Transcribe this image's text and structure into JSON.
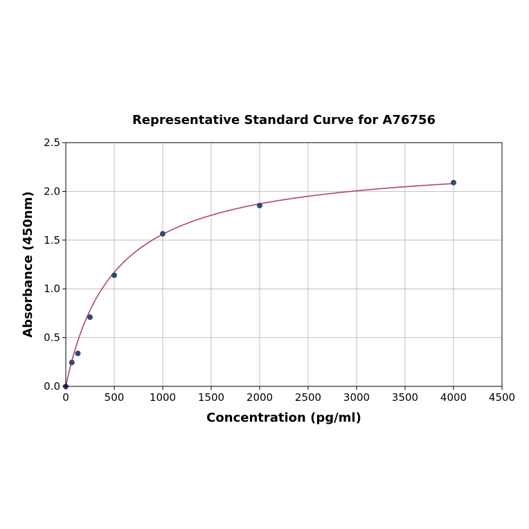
{
  "chart_data": {
    "type": "scatter",
    "title": "Representative Standard Curve for A76756",
    "xlabel": "Concentration (pg/ml)",
    "ylabel": "Absorbance (450nm)",
    "xlim": [
      0,
      4500
    ],
    "ylim": [
      0,
      2.5
    ],
    "xticks": [
      "0",
      "500",
      "1000",
      "1500",
      "2000",
      "2500",
      "3000",
      "3500",
      "4000",
      "4500"
    ],
    "yticks": [
      "0.0",
      "0.5",
      "1.0",
      "1.5",
      "2.0",
      "2.5"
    ],
    "grid": true,
    "series": [
      {
        "x": [
          0,
          62.5,
          125,
          250,
          500,
          1000,
          2000,
          4000
        ],
        "y": [
          0.0,
          0.245,
          0.338,
          0.71,
          1.14,
          1.565,
          1.855,
          2.09
        ],
        "marker_color": "#2e4a6e",
        "fit_curve_color": "#b0446a"
      }
    ]
  }
}
